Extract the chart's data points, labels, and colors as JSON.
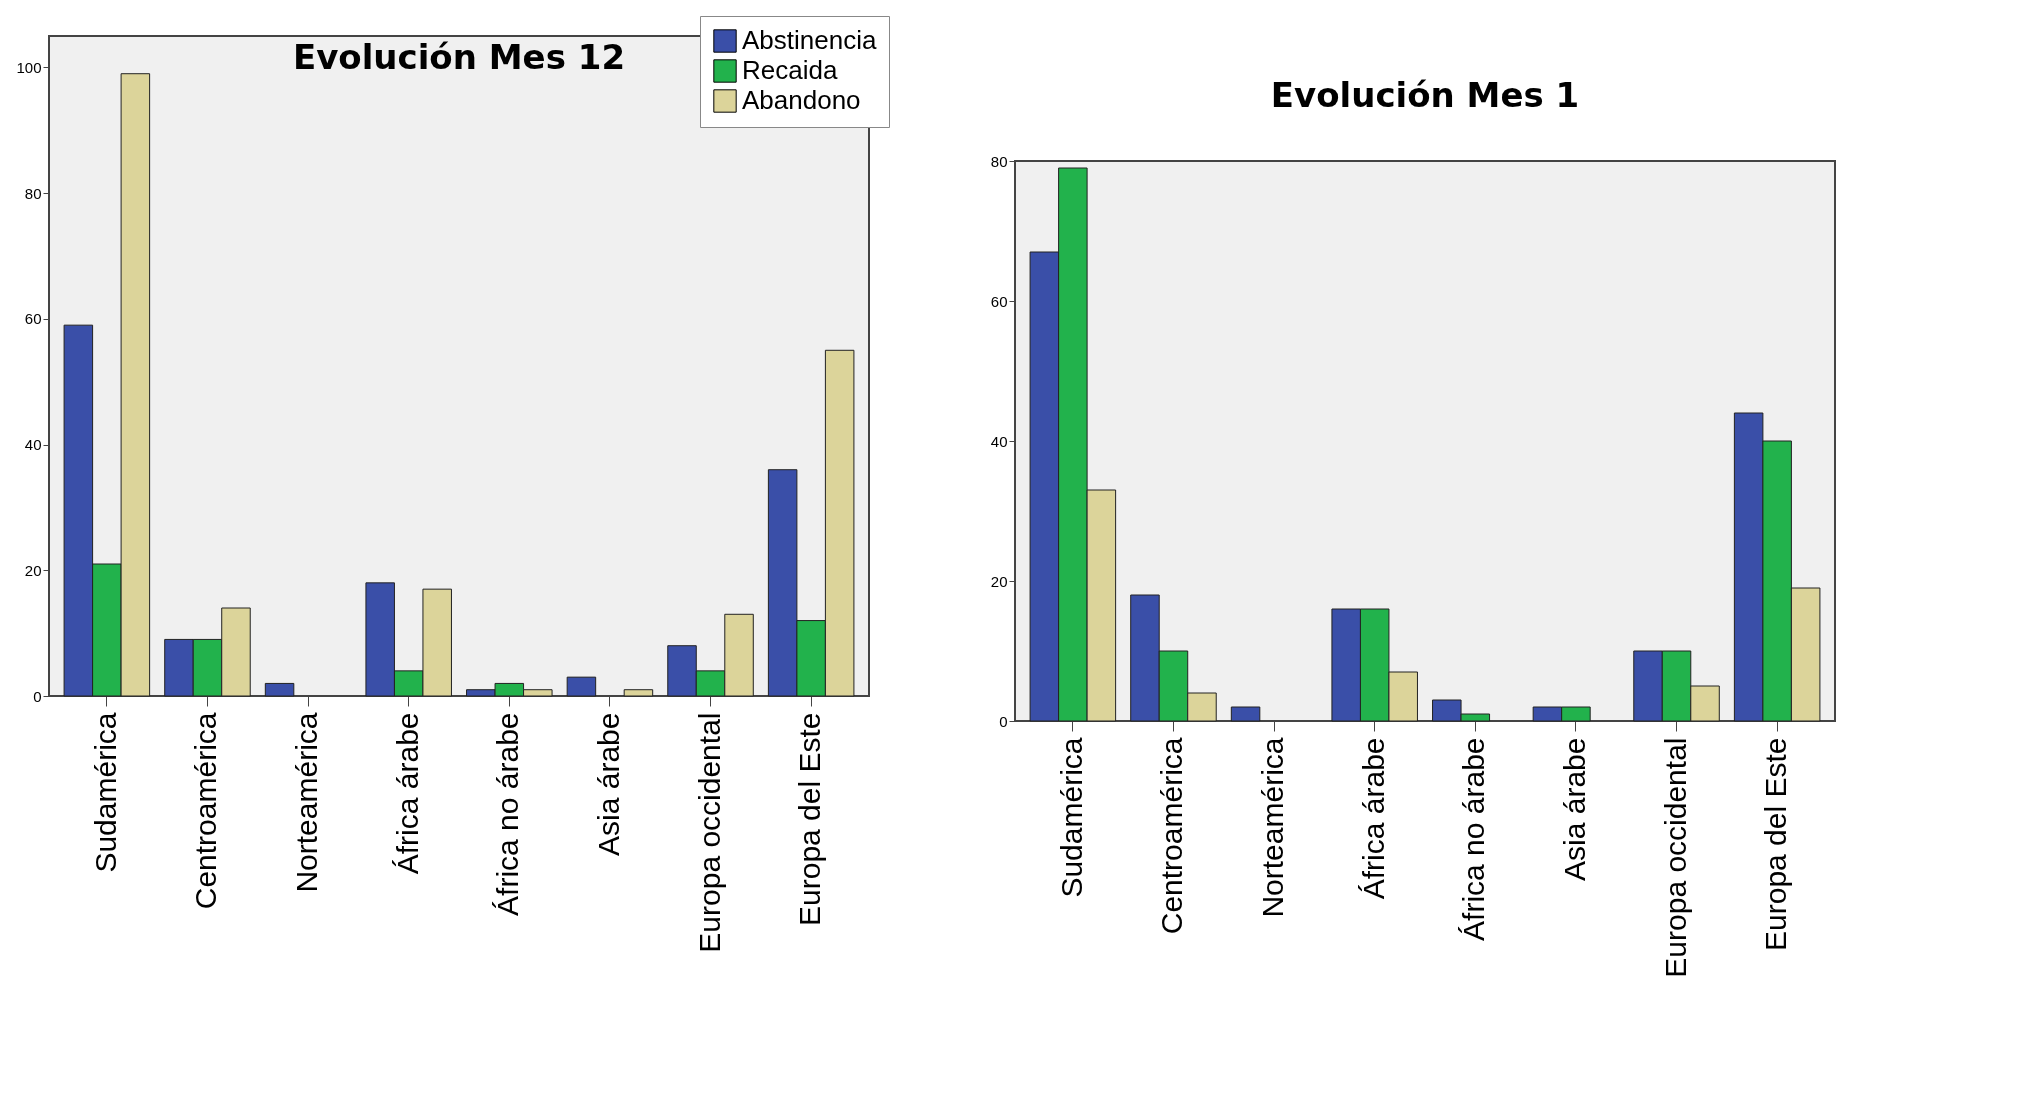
{
  "chart_data": [
    {
      "type": "bar",
      "title": "Evolución Mes 12",
      "categories": [
        "Sudamérica",
        "Centroamérica",
        "Norteamérica",
        "África árabe",
        "África no árabe",
        "Asia árabe",
        "Europa occidental",
        "Europa del Este"
      ],
      "series": [
        {
          "name": "Abstinencia",
          "color": "#3a4fa8",
          "values": [
            59,
            9,
            2,
            18,
            1,
            3,
            8,
            36
          ]
        },
        {
          "name": "Recaida",
          "color": "#22b24c",
          "values": [
            21,
            9,
            0,
            4,
            2,
            0,
            4,
            12
          ]
        },
        {
          "name": "Abandono",
          "color": "#dcd49a",
          "values": [
            99,
            14,
            0,
            17,
            1,
            1,
            13,
            55
          ]
        }
      ],
      "ylim": [
        0,
        105
      ],
      "yticks": [
        0,
        20,
        40,
        60,
        80,
        100
      ],
      "legend": "top right"
    },
    {
      "type": "bar",
      "title": "Evolución Mes 1",
      "categories": [
        "Sudamérica",
        "Centroamérica",
        "Norteamérica",
        "África árabe",
        "África no árabe",
        "Asia árabe",
        "Europa occidental",
        "Europa del Este"
      ],
      "series": [
        {
          "color": "#3a4fa8",
          "values": [
            67,
            18,
            2,
            16,
            3,
            2,
            10,
            44
          ]
        },
        {
          "color": "#22b24c",
          "values": [
            79,
            10,
            0,
            16,
            1,
            2,
            10,
            40
          ]
        },
        {
          "color": "#dcd49a",
          "values": [
            33,
            4,
            0,
            7,
            0,
            0,
            5,
            19
          ]
        }
      ],
      "ylim": [
        0,
        80
      ],
      "yticks": [
        0,
        20,
        40,
        60,
        80
      ]
    }
  ]
}
